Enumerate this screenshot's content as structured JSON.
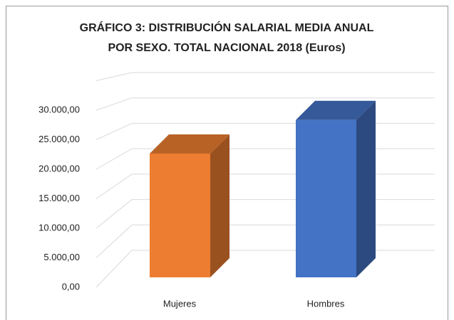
{
  "chart_data": {
    "type": "bar3d",
    "title": [
      "GRÁFICO 3: DISTRIBUCIÓN SALARIAL MEDIA ANUAL",
      "POR SEXO. TOTAL NACIONAL 2018 (Euros)"
    ],
    "categories": [
      "Mujeres",
      "Hombres"
    ],
    "values": [
      21000,
      26700
    ],
    "colors": [
      "#ed7d31",
      "#4472c4"
    ],
    "ylim": [
      0,
      35000
    ],
    "yticks": [
      {
        "value": 0,
        "label": "0,00"
      },
      {
        "value": 5000,
        "label": "5.000,00"
      },
      {
        "value": 10000,
        "label": "10.000,00"
      },
      {
        "value": 15000,
        "label": "15.000,00"
      },
      {
        "value": 20000,
        "label": "20.000,00"
      },
      {
        "value": 25000,
        "label": "25.000,00"
      },
      {
        "value": 30000,
        "label": "30.000,00"
      }
    ],
    "grid": true
  }
}
